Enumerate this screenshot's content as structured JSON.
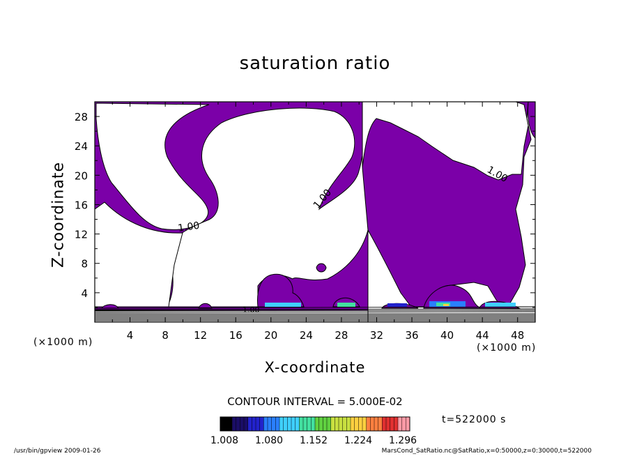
{
  "chart_data": {
    "type": "contour",
    "title": "saturation ratio",
    "xlabel": "X-coordinate",
    "ylabel": "Z-coordinate",
    "x_unit": "(×1000 m)",
    "y_unit": "(×1000 m)",
    "xlim": [
      0,
      50
    ],
    "ylim": [
      0,
      30
    ],
    "x_ticks": [
      4,
      8,
      12,
      16,
      20,
      24,
      28,
      32,
      36,
      40,
      44,
      48
    ],
    "y_ticks": [
      4,
      8,
      12,
      16,
      20,
      24,
      28
    ],
    "contour_labels": [
      "1.00",
      "1.00",
      "1.00",
      "1.00"
    ],
    "contour_interval_text": "CONTOUR INTERVAL = 5.000E-02",
    "colorbar": {
      "tick_labels": [
        "1.008",
        "1.080",
        "1.152",
        "1.224",
        "1.296"
      ],
      "colors": [
        "#000000",
        "#1a0d66",
        "#2222cc",
        "#2a7fff",
        "#3fd0ff",
        "#43e0a0",
        "#60d040",
        "#c8e040",
        "#ffd040",
        "#ff8040",
        "#e03030",
        "#ff9aa6"
      ]
    },
    "fill_color": "#7b00a8",
    "time_label": "t=522000 s"
  },
  "footer": {
    "left": "/usr/bin/gpview  2009-01-26",
    "right": "MarsCond_SatRatio.nc@SatRatio,x=0:50000,z=0:30000,t=522000"
  }
}
